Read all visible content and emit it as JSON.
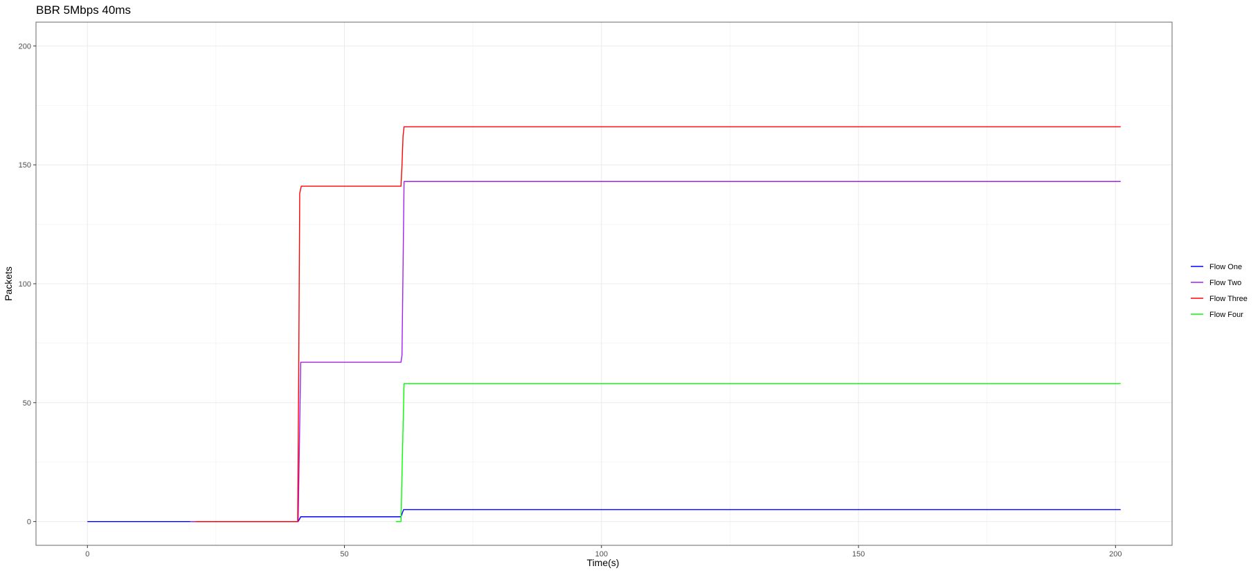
{
  "chart_data": {
    "type": "line",
    "title": "BBR 5Mbps 40ms",
    "xlabel": "Time(s)",
    "ylabel": "Packets",
    "xlim": [
      -10,
      211
    ],
    "ylim": [
      -10,
      210
    ],
    "xticks": [
      0,
      50,
      100,
      150,
      200
    ],
    "yticks": [
      0,
      50,
      100,
      150,
      200
    ],
    "grid": true,
    "legend_position": "right",
    "series": [
      {
        "name": "Flow One",
        "color": "#0000ff",
        "points": [
          [
            0,
            0
          ],
          [
            41,
            0
          ],
          [
            41.5,
            2
          ],
          [
            61,
            2
          ],
          [
            61.5,
            5
          ],
          [
            201,
            5
          ]
        ]
      },
      {
        "name": "Flow Two",
        "color": "#a020f0",
        "points": [
          [
            20,
            0
          ],
          [
            41,
            0
          ],
          [
            41.5,
            67
          ],
          [
            61,
            67
          ],
          [
            61.2,
            70
          ],
          [
            61.6,
            143
          ],
          [
            201,
            143
          ]
        ]
      },
      {
        "name": "Flow Three",
        "color": "#ff0000",
        "points": [
          [
            21,
            0
          ],
          [
            40.9,
            0
          ],
          [
            41.1,
            60
          ],
          [
            41.3,
            138
          ],
          [
            41.6,
            141
          ],
          [
            61,
            141
          ],
          [
            61.2,
            150
          ],
          [
            61.4,
            162
          ],
          [
            61.6,
            166
          ],
          [
            201,
            166
          ]
        ]
      },
      {
        "name": "Flow Four",
        "color": "#00ff00",
        "points": [
          [
            60,
            0
          ],
          [
            61,
            0
          ],
          [
            61.3,
            30
          ],
          [
            61.6,
            58
          ],
          [
            201,
            58
          ]
        ]
      }
    ]
  }
}
